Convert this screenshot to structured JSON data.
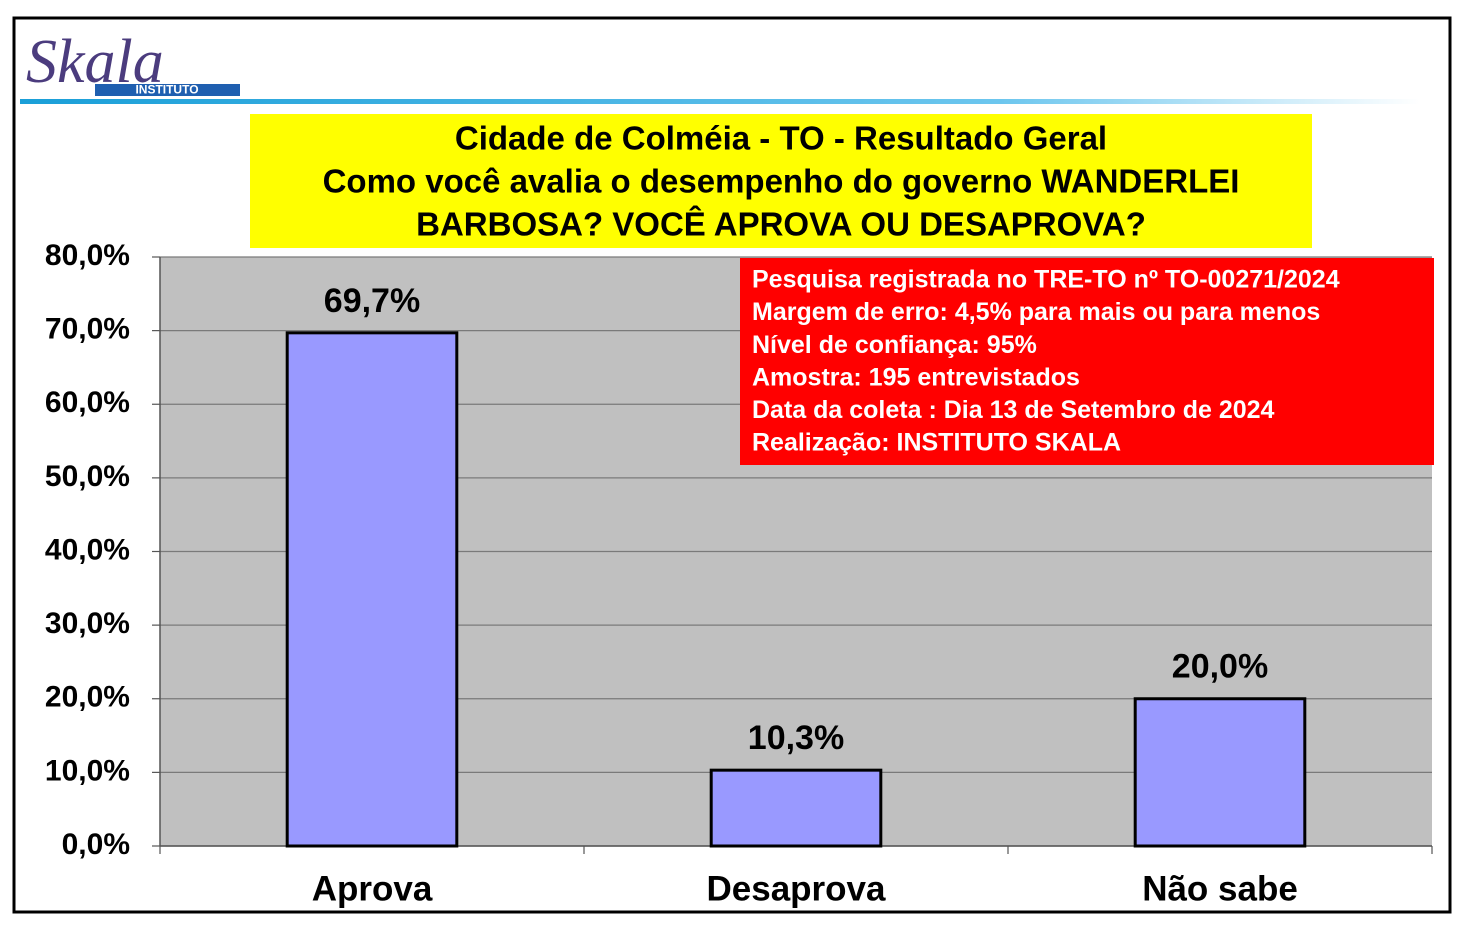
{
  "logo": {
    "name": "Skala",
    "subtitle": "INSTITUTO"
  },
  "chart_data": {
    "type": "bar",
    "title": [
      "Cidade de Colméia - TO - Resultado Geral",
      "Como você avalia o desempenho do governo WANDERLEI",
      "BARBOSA? VOCÊ APROVA OU DESAPROVA?"
    ],
    "annotations": [
      "Pesquisa registrada no TRE-TO nº TO-00271/2024",
      "Margem de erro: 4,5% para mais ou para menos",
      "Nível de confiança: 95%",
      "Amostra: 195 entrevistados",
      "Data da coleta : Dia 13 de Setembro de 2024",
      "Realização: INSTITUTO SKALA"
    ],
    "categories": [
      "Aprova",
      "Desaprova",
      "Não sabe"
    ],
    "values": [
      69.7,
      10.3,
      20.0
    ],
    "value_labels": [
      "69,7%",
      "10,3%",
      "20,0%"
    ],
    "color": "#9999ff",
    "ylim": [
      0,
      80
    ],
    "yticks": [
      {
        "value": 0,
        "label": "0,0%"
      },
      {
        "value": 10,
        "label": "10,0%"
      },
      {
        "value": 20,
        "label": "20,0%"
      },
      {
        "value": 30,
        "label": "30,0%"
      },
      {
        "value": 40,
        "label": "40,0%"
      },
      {
        "value": 50,
        "label": "50,0%"
      },
      {
        "value": 60,
        "label": "60,0%"
      },
      {
        "value": 70,
        "label": "70,0%"
      },
      {
        "value": 80,
        "label": "80,0%"
      }
    ],
    "grid": true
  }
}
